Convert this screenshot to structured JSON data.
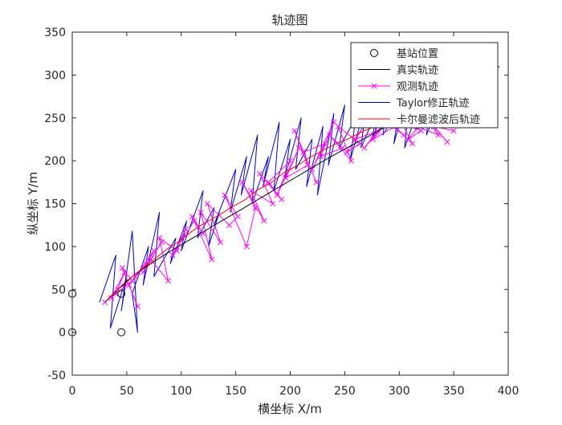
{
  "chart_data": {
    "type": "line",
    "title": "轨迹图",
    "xlabel": "横坐标 X/m",
    "ylabel": "纵坐标 Y/m",
    "xlim": [
      0,
      400
    ],
    "ylim": [
      -50,
      350
    ],
    "xticks": [
      0,
      50,
      100,
      150,
      200,
      250,
      300,
      350,
      400
    ],
    "yticks": [
      -50,
      0,
      50,
      100,
      150,
      200,
      250,
      300,
      350
    ],
    "grid": false,
    "legend_position": "top-right",
    "colors": {
      "stations": "#000000",
      "true": "#000000",
      "observed": "#ff00ff",
      "taylor": "#0000cc",
      "kalman": "#ff0000"
    },
    "series": [
      {
        "name": "基站位置",
        "style": "markers-circle",
        "x": [
          0,
          0,
          45,
          45
        ],
        "y": [
          0,
          45,
          0,
          45
        ]
      },
      {
        "name": "真实轨迹",
        "style": "line",
        "x": [
          30,
          38,
          46,
          55,
          65,
          78,
          92,
          108,
          124,
          140,
          156,
          172,
          188,
          204,
          220,
          236,
          252,
          268,
          284,
          300,
          316,
          332,
          348,
          364,
          380,
          392
        ],
        "y": [
          35,
          45,
          55,
          65,
          74,
          85,
          96,
          108,
          120,
          132,
          144,
          156,
          168,
          180,
          192,
          204,
          215,
          226,
          237,
          248,
          259,
          270,
          281,
          292,
          302,
          310
        ]
      },
      {
        "name": "观测轨迹",
        "style": "line-x",
        "x": [
          30,
          42,
          36,
          48,
          40,
          55,
          46,
          60,
          52,
          68,
          58,
          75,
          65,
          82,
          72,
          88,
          80,
          96,
          104,
          92,
          112,
          120,
          110,
          128,
          118,
          136,
          124,
          144,
          152,
          140,
          160,
          168,
          156,
          176,
          164,
          184,
          172,
          192,
          180,
          200,
          188,
          208,
          196,
          216,
          204,
          224,
          212,
          232,
          220,
          240,
          228,
          248,
          236,
          256,
          244,
          264,
          252,
          272,
          260,
          280,
          268,
          288,
          276,
          296,
          284,
          304,
          292,
          312,
          300,
          320,
          308,
          328,
          316,
          336,
          324,
          344,
          332,
          350
        ],
        "y": [
          35,
          50,
          40,
          70,
          45,
          60,
          75,
          30,
          55,
          80,
          65,
          95,
          70,
          105,
          85,
          60,
          110,
          95,
          120,
          90,
          130,
          115,
          135,
          85,
          140,
          105,
          150,
          125,
          135,
          160,
          100,
          145,
          175,
          130,
          165,
          150,
          185,
          155,
          175,
          200,
          160,
          215,
          180,
          195,
          235,
          175,
          210,
          220,
          190,
          245,
          205,
          215,
          230,
          200,
          240,
          220,
          210,
          250,
          225,
          235,
          215,
          245,
          225,
          240,
          250,
          230,
          245,
          220,
          250,
          235,
          225,
          255,
          240,
          230,
          250,
          222,
          240,
          235
        ]
      },
      {
        "name": "Taylor修正轨迹",
        "style": "line",
        "x": [
          25,
          40,
          35,
          50,
          45,
          55,
          60,
          55,
          70,
          65,
          80,
          75,
          95,
          90,
          105,
          100,
          120,
          115,
          130,
          125,
          135,
          130,
          150,
          145,
          160,
          155,
          170,
          165,
          180,
          175,
          190,
          185,
          200,
          195,
          210,
          205,
          220,
          215,
          230,
          225,
          240,
          235,
          250,
          245,
          260,
          255,
          270,
          265,
          280,
          275,
          290,
          285,
          300,
          295,
          310,
          305,
          320,
          315,
          330,
          325,
          340,
          335,
          350,
          345,
          360,
          355
        ],
        "y": [
          35,
          90,
          5,
          65,
          25,
          118,
          0,
          45,
          100,
          55,
          140,
          65,
          110,
          80,
          130,
          95,
          165,
          110,
          145,
          100,
          140,
          125,
          190,
          140,
          205,
          160,
          230,
          150,
          205,
          170,
          245,
          165,
          225,
          180,
          250,
          190,
          225,
          170,
          240,
          160,
          255,
          195,
          265,
          215,
          250,
          200,
          270,
          215,
          260,
          225,
          275,
          230,
          262,
          220,
          285,
          215,
          270,
          235,
          280,
          230,
          275,
          245,
          290,
          255,
          300,
          262
        ]
      },
      {
        "name": "卡尔曼滤波后轨迹",
        "style": "line",
        "x": [
          32,
          40,
          48,
          56,
          64,
          74,
          86,
          98,
          110,
          122,
          134,
          146,
          158,
          170,
          182,
          194,
          206,
          218,
          230,
          242,
          254,
          266,
          278,
          290,
          302,
          314,
          326,
          338,
          350
        ],
        "y": [
          38,
          48,
          56,
          66,
          74,
          84,
          96,
          106,
          118,
          128,
          136,
          146,
          154,
          166,
          174,
          186,
          194,
          204,
          212,
          220,
          226,
          234,
          240,
          246,
          252,
          258,
          262,
          268,
          272
        ]
      }
    ]
  }
}
